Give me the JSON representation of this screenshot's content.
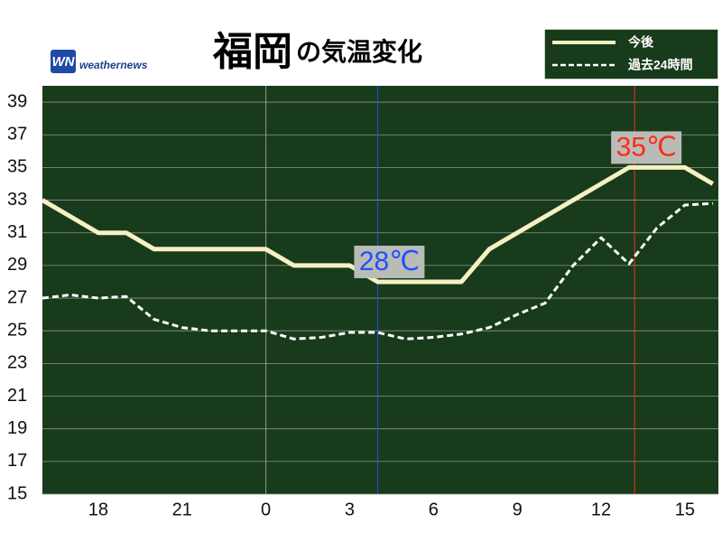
{
  "chart_data": {
    "type": "line",
    "title": [
      "福岡",
      "の気温変化"
    ],
    "logo": {
      "mark": "WN",
      "text": "weathernews"
    },
    "x": [
      16,
      17,
      18,
      19,
      20,
      21,
      22,
      23,
      24,
      25,
      26,
      27,
      28,
      29,
      30,
      31,
      32,
      33,
      34,
      35,
      36,
      37,
      38,
      39,
      40
    ],
    "xlim": [
      16,
      40.2
    ],
    "xticks": [
      {
        "value": 18,
        "label": "18"
      },
      {
        "value": 21,
        "label": "21"
      },
      {
        "value": 24,
        "label": "0"
      },
      {
        "value": 27,
        "label": "3"
      },
      {
        "value": 30,
        "label": "6"
      },
      {
        "value": 33,
        "label": "9"
      },
      {
        "value": 36,
        "label": "12"
      },
      {
        "value": 39,
        "label": "15"
      }
    ],
    "x_day_line": 24,
    "ylim": [
      15,
      40
    ],
    "yticks": [
      15,
      17,
      19,
      21,
      23,
      25,
      27,
      29,
      31,
      33,
      35,
      37,
      39
    ],
    "grid": true,
    "series": [
      {
        "name": "今後",
        "color": "#f6f0c2",
        "dash": false,
        "values": [
          33,
          32,
          31,
          31,
          30,
          30,
          30,
          30,
          30,
          29,
          29,
          29,
          28,
          28,
          28,
          28,
          30,
          31,
          32,
          33,
          34,
          35,
          35,
          35,
          34
        ]
      },
      {
        "name": "過去24時間",
        "color": "#ffffff",
        "dash": true,
        "values": [
          27,
          27.2,
          27,
          27.1,
          25.7,
          25.2,
          25,
          25,
          25,
          24.5,
          24.6,
          24.9,
          24.9,
          24.5,
          24.6,
          24.8,
          25.2,
          26,
          26.7,
          29,
          30.7,
          29.1,
          31.3,
          32.7,
          32.8
        ]
      }
    ],
    "annotations": [
      {
        "text": "28℃",
        "x": 28,
        "y": 28,
        "color": "#1f4fff"
      },
      {
        "text": "35℃",
        "x": 37.2,
        "y": 35,
        "color": "#ff2a14"
      }
    ],
    "legend": "top-right"
  }
}
